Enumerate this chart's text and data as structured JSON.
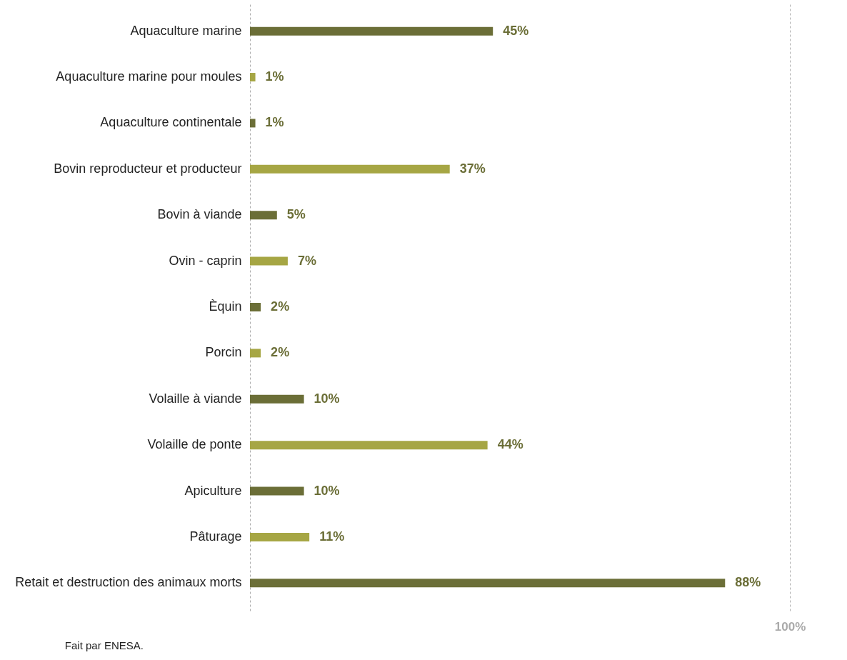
{
  "chart_data": {
    "type": "bar",
    "orientation": "horizontal",
    "categories": [
      "Aquaculture marine",
      "Aquaculture marine pour moules",
      "Aquaculture continentale",
      "Bovin reproducteur et producteur",
      "Bovin à viande",
      "Ovin - caprin",
      "Èquin",
      "Porcin",
      "Volaille à viande",
      "Volaille de ponte",
      "Apiculture",
      "Pâturage",
      "Retait et destruction des animaux morts"
    ],
    "values": [
      45,
      1,
      1,
      37,
      5,
      7,
      2,
      2,
      10,
      44,
      10,
      11,
      88
    ],
    "colors": [
      "#6b6e37",
      "#a6a644",
      "#6b6e37",
      "#a6a644",
      "#6b6e37",
      "#a6a644",
      "#6b6e37",
      "#a6a644",
      "#6b6e37",
      "#a6a644",
      "#6b6e37",
      "#a6a644",
      "#6b6e37"
    ],
    "value_labels": [
      "45%",
      "1%",
      "1%",
      "37%",
      "5%",
      "7%",
      "2%",
      "2%",
      "10%",
      "44%",
      "10%",
      "11%",
      "88%"
    ],
    "xlim": [
      0,
      100
    ],
    "xticks": [
      {
        "value": 0,
        "label": null
      },
      {
        "value": 100,
        "label": "100%"
      }
    ],
    "grid": "x",
    "annotations": [
      "Fait par ENESA."
    ]
  }
}
